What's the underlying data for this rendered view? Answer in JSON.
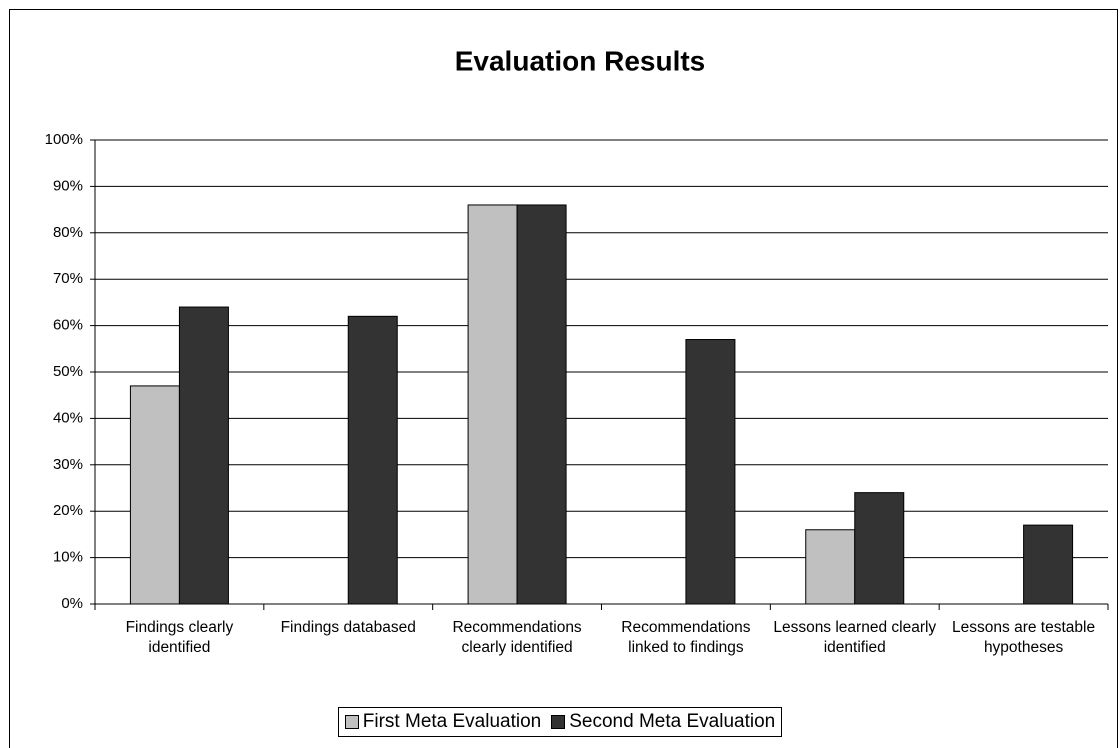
{
  "chart_data": {
    "type": "bar",
    "title": "Evaluation Results",
    "categories": [
      "Findings clearly identified",
      "Findings databased",
      "Recommendations clearly identified",
      "Recommendations linked to findings",
      "Lessons learned clearly identified",
      "Lessons are testable hypotheses"
    ],
    "series": [
      {
        "name": "First Meta Evaluation",
        "color": "#c0c0c0",
        "values": [
          47,
          null,
          86,
          null,
          16,
          null
        ]
      },
      {
        "name": "Second Meta Evaluation",
        "color": "#333333",
        "values": [
          64,
          62,
          86,
          57,
          24,
          17
        ]
      }
    ],
    "ylim": [
      0,
      100
    ],
    "yticks": [
      {
        "value": 0,
        "label": "0%"
      },
      {
        "value": 10,
        "label": "10%"
      },
      {
        "value": 20,
        "label": "20%"
      },
      {
        "value": 30,
        "label": "30%"
      },
      {
        "value": 40,
        "label": "40%"
      },
      {
        "value": 50,
        "label": "50%"
      },
      {
        "value": 60,
        "label": "60%"
      },
      {
        "value": 70,
        "label": "70%"
      },
      {
        "value": 80,
        "label": "80%"
      },
      {
        "value": 90,
        "label": "90%"
      },
      {
        "value": 100,
        "label": "100%"
      }
    ],
    "grid": true,
    "legend": "bottom"
  }
}
